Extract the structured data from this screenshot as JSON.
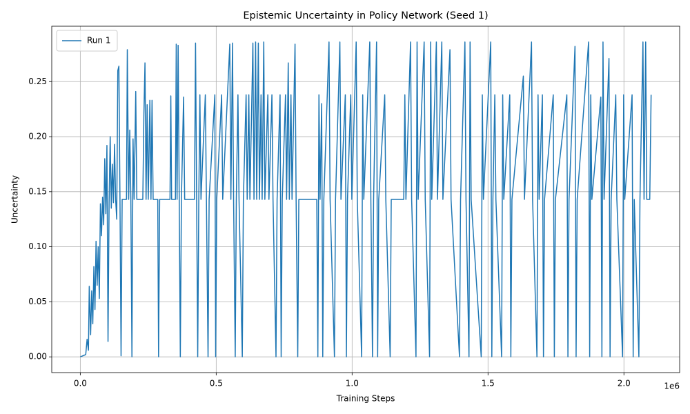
{
  "chart_data": {
    "type": "line",
    "title": "Epistemic Uncertainty in Policy Network (Seed 1)",
    "x_label": "Training Steps",
    "y_label": "Uncertainty",
    "x_offset_label": "1e6",
    "xlim": [
      -105000,
      2205000
    ],
    "ylim": [
      -0.0143,
      0.3003
    ],
    "xticks": [
      {
        "value": 0,
        "label": "0.0"
      },
      {
        "value": 500000,
        "label": "0.5"
      },
      {
        "value": 1000000,
        "label": "1.0"
      },
      {
        "value": 1500000,
        "label": "1.5"
      },
      {
        "value": 2000000,
        "label": "2.0"
      }
    ],
    "yticks": [
      {
        "value": 0,
        "label": "0.00"
      },
      {
        "value": 0.05,
        "label": "0.05"
      },
      {
        "value": 0.1,
        "label": "0.10"
      },
      {
        "value": 0.15,
        "label": "0.15"
      },
      {
        "value": 0.2,
        "label": "0.20"
      },
      {
        "value": 0.25,
        "label": "0.25"
      }
    ],
    "grid": true,
    "legend": "upper left",
    "x": [
      0,
      10000,
      20000,
      25000,
      30000,
      33000,
      38000,
      42000,
      46000,
      50000,
      54000,
      58000,
      62000,
      66000,
      70000,
      74000,
      78000,
      82000,
      86000,
      90000,
      94000,
      98000,
      102000,
      106000,
      110000,
      114000,
      118000,
      122000,
      126000,
      130000,
      134000,
      138000,
      142000,
      146000,
      150000,
      154000,
      170000,
      173000,
      178000,
      182000,
      186000,
      190000,
      194000,
      198000,
      204000,
      208000,
      230000,
      234000,
      238000,
      242000,
      246000,
      250000,
      256000,
      260000,
      264000,
      268000,
      285000,
      288000,
      292000,
      330000,
      333000,
      336000,
      350000,
      353000,
      356000,
      360000,
      364000,
      368000,
      372000,
      380000,
      384000,
      420000,
      424000,
      428000,
      432000,
      436000,
      440000,
      444000,
      460000,
      464000,
      470000,
      474000,
      495000,
      498000,
      502000,
      520000,
      524000,
      550000,
      554000,
      560000,
      564000,
      570000,
      574000,
      580000,
      584000,
      596000,
      600000,
      610000,
      614000,
      620000,
      624000,
      635000,
      639000,
      645000,
      649000,
      655000,
      659000,
      665000,
      669000,
      675000,
      679000,
      690000,
      694000,
      705000,
      709000,
      720000,
      724000,
      735000,
      739000,
      743000,
      755000,
      759000,
      765000,
      769000,
      775000,
      779000,
      790000,
      794000,
      800000,
      804000,
      870000,
      874000,
      878000,
      882000,
      888000,
      892000,
      896000,
      915000,
      919000,
      935000,
      939000,
      955000,
      959000,
      975000,
      979000,
      983000,
      995000,
      999000,
      1015000,
      1019000,
      1035000,
      1039000,
      1043000,
      1065000,
      1069000,
      1075000,
      1079000,
      1090000,
      1094000,
      1098000,
      1120000,
      1124000,
      1140000,
      1144000,
      1190000,
      1194000,
      1198000,
      1215000,
      1219000,
      1235000,
      1239000,
      1243000,
      1265000,
      1269000,
      1285000,
      1289000,
      1293000,
      1310000,
      1314000,
      1330000,
      1334000,
      1360000,
      1364000,
      1395000,
      1399000,
      1415000,
      1419000,
      1430000,
      1434000,
      1438000,
      1475000,
      1479000,
      1483000,
      1510000,
      1514000,
      1518000,
      1525000,
      1529000,
      1550000,
      1554000,
      1558000,
      1580000,
      1584000,
      1588000,
      1630000,
      1634000,
      1660000,
      1664000,
      1680000,
      1684000,
      1688000,
      1700000,
      1704000,
      1708000,
      1740000,
      1744000,
      1748000,
      1790000,
      1794000,
      1798000,
      1820000,
      1824000,
      1828000,
      1870000,
      1874000,
      1878000,
      1882000,
      1915000,
      1919000,
      1923000,
      1927000,
      1945000,
      1949000,
      1953000,
      1970000,
      1974000,
      1995000,
      1999000,
      2003000,
      2030000,
      2034000,
      2038000,
      2055000,
      2059000,
      2070000,
      2074000,
      2080000,
      2084000,
      2095000,
      2100000
    ],
    "series": [
      {
        "name": "Run 1",
        "color": "#1f77b4",
        "values": [
          0,
          0.001,
          0.002,
          0.016,
          0.006,
          0.064,
          0.02,
          0.06,
          0.03,
          0.082,
          0.043,
          0.105,
          0.065,
          0.1,
          0.053,
          0.139,
          0.11,
          0.145,
          0.12,
          0.18,
          0.13,
          0.192,
          0.014,
          0.14,
          0.2,
          0.135,
          0.175,
          0.14,
          0.193,
          0.143,
          0.125,
          0.26,
          0.264,
          0.143,
          0.001,
          0.143,
          0.143,
          0.279,
          0.143,
          0.206,
          0.143,
          0,
          0.198,
          0.143,
          0.241,
          0.143,
          0.143,
          0.221,
          0.267,
          0.143,
          0.229,
          0.143,
          0.233,
          0.143,
          0.233,
          0.143,
          0.143,
          0,
          0.143,
          0.143,
          0.237,
          0.143,
          0.143,
          0.284,
          0.143,
          0.283,
          0.143,
          0,
          0.143,
          0.236,
          0.143,
          0.143,
          0.285,
          0.143,
          0,
          0.143,
          0.238,
          0.143,
          0.238,
          0.143,
          0,
          0.143,
          0.238,
          0,
          0.143,
          0.238,
          0.143,
          0.284,
          0.143,
          0.285,
          0.143,
          0,
          0.143,
          0.238,
          0.143,
          0,
          0.143,
          0.238,
          0.143,
          0.238,
          0.143,
          0.285,
          0.143,
          0.286,
          0.143,
          0.285,
          0.143,
          0.238,
          0.143,
          0.286,
          0.143,
          0.238,
          0.143,
          0.238,
          0.143,
          0,
          0.143,
          0.238,
          0,
          0.143,
          0.238,
          0.143,
          0.267,
          0.143,
          0.238,
          0.143,
          0.284,
          0.143,
          0,
          0.143,
          0.143,
          0,
          0.238,
          0.143,
          0.23,
          0,
          0.143,
          0.286,
          0.143,
          0,
          0.143,
          0.286,
          0.143,
          0.238,
          0,
          0.143,
          0.238,
          0.143,
          0.286,
          0.143,
          0,
          0.238,
          0.143,
          0.286,
          0.143,
          0,
          0.143,
          0.286,
          0,
          0.143,
          0.238,
          0.143,
          0,
          0.143,
          0.143,
          0.238,
          0.143,
          0.286,
          0.143,
          0,
          0.286,
          0.143,
          0.286,
          0.143,
          0,
          0.286,
          0.143,
          0.286,
          0.143,
          0.286,
          0.143,
          0.279,
          0.143,
          0,
          0.143,
          0.286,
          0.143,
          0,
          0.286,
          0.143,
          0,
          0.238,
          0.143,
          0.286,
          0,
          0.143,
          0.238,
          0.143,
          0,
          0.238,
          0.143,
          0.238,
          0,
          0.143,
          0.255,
          0.143,
          0.286,
          0.143,
          0,
          0.238,
          0.143,
          0.238,
          0,
          0.143,
          0.238,
          0,
          0.143,
          0.238,
          0,
          0.143,
          0.282,
          0,
          0.143,
          0.286,
          0,
          0.238,
          0.143,
          0.236,
          0,
          0.286,
          0.143,
          0.271,
          0,
          0.143,
          0.238,
          0.143,
          0,
          0.238,
          0.143,
          0.238,
          0,
          0.143,
          0,
          0.143,
          0.286,
          0.143,
          0.286,
          0.143,
          0.143,
          0.238
        ]
      }
    ]
  }
}
